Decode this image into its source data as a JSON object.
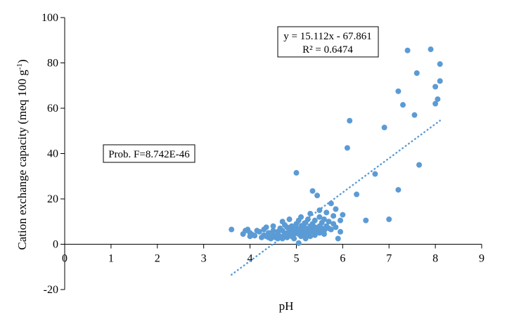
{
  "chart_data": {
    "type": "scatter",
    "title": "",
    "xlabel": "pH",
    "ylabel": "Cation exchange capacity  (meq 100 g",
    "ylabel_sup": "-1",
    "ylabel_close": ")",
    "xlim": [
      0,
      9
    ],
    "ylim": [
      -20,
      100
    ],
    "xticks": [
      0,
      1,
      2,
      3,
      4,
      5,
      6,
      7,
      8,
      9
    ],
    "yticks": [
      -20,
      0,
      20,
      40,
      60,
      80,
      100
    ],
    "grid": false,
    "legend": "none",
    "colors": {
      "points": "#5b9bd5",
      "trendline": "#5b9bd5",
      "axis": "#000000"
    },
    "trendline": {
      "slope": 15.112,
      "intercept": -67.861,
      "x_range": [
        3.6,
        8.1
      ],
      "style": "dotted"
    },
    "annotations": {
      "equation": "y = 15.112x - 67.861",
      "r_squared": "R² = 0.6474",
      "prob_f": "Prob. F=8.742E-46"
    },
    "points": [
      [
        3.6,
        6.5
      ],
      [
        3.85,
        4.5
      ],
      [
        3.9,
        6
      ],
      [
        3.95,
        6.5
      ],
      [
        4.0,
        5
      ],
      [
        4.0,
        3.5
      ],
      [
        4.05,
        4.2
      ],
      [
        4.1,
        3.8
      ],
      [
        4.15,
        6
      ],
      [
        4.2,
        5.5
      ],
      [
        4.25,
        3
      ],
      [
        4.3,
        4
      ],
      [
        4.3,
        6.5
      ],
      [
        4.35,
        3.5
      ],
      [
        4.35,
        7.5
      ],
      [
        4.4,
        5
      ],
      [
        4.4,
        3
      ],
      [
        4.45,
        2.5
      ],
      [
        4.5,
        4
      ],
      [
        4.5,
        6
      ],
      [
        4.5,
        8
      ],
      [
        4.55,
        3
      ],
      [
        4.6,
        5.5
      ],
      [
        4.6,
        2.5
      ],
      [
        4.6,
        4.5
      ],
      [
        4.65,
        7
      ],
      [
        4.65,
        3.5
      ],
      [
        4.7,
        6
      ],
      [
        4.7,
        10
      ],
      [
        4.7,
        2.5
      ],
      [
        4.75,
        4.5
      ],
      [
        4.75,
        8.5
      ],
      [
        4.8,
        5
      ],
      [
        4.8,
        3
      ],
      [
        4.8,
        7.5
      ],
      [
        4.85,
        4
      ],
      [
        4.85,
        6
      ],
      [
        4.85,
        11
      ],
      [
        4.9,
        5.5
      ],
      [
        4.9,
        3.5
      ],
      [
        4.9,
        8
      ],
      [
        4.95,
        6.5
      ],
      [
        4.95,
        4.5
      ],
      [
        4.95,
        2.5
      ],
      [
        5.0,
        5
      ],
      [
        5.0,
        7
      ],
      [
        5.0,
        9
      ],
      [
        5.0,
        31.5
      ],
      [
        5.05,
        4.5
      ],
      [
        5.05,
        6
      ],
      [
        5.05,
        10.5
      ],
      [
        5.05,
        0.5
      ],
      [
        5.1,
        5.5
      ],
      [
        5.1,
        7.5
      ],
      [
        5.1,
        3.5
      ],
      [
        5.1,
        12
      ],
      [
        5.15,
        6
      ],
      [
        5.15,
        8.5
      ],
      [
        5.15,
        4
      ],
      [
        5.2,
        5
      ],
      [
        5.2,
        7
      ],
      [
        5.2,
        9.5
      ],
      [
        5.2,
        2.5
      ],
      [
        5.25,
        6.5
      ],
      [
        5.25,
        4.5
      ],
      [
        5.25,
        11
      ],
      [
        5.3,
        5.5
      ],
      [
        5.3,
        8
      ],
      [
        5.3,
        3.5
      ],
      [
        5.3,
        13.5
      ],
      [
        5.35,
        6
      ],
      [
        5.35,
        9
      ],
      [
        5.35,
        23.5
      ],
      [
        5.4,
        5
      ],
      [
        5.4,
        7.5
      ],
      [
        5.4,
        10.5
      ],
      [
        5.4,
        4
      ],
      [
        5.45,
        6.5
      ],
      [
        5.45,
        21.5
      ],
      [
        5.5,
        5
      ],
      [
        5.5,
        8
      ],
      [
        5.5,
        12
      ],
      [
        5.5,
        15
      ],
      [
        5.55,
        7
      ],
      [
        5.55,
        9.5
      ],
      [
        5.6,
        6
      ],
      [
        5.6,
        11
      ],
      [
        5.6,
        4.5
      ],
      [
        5.65,
        8
      ],
      [
        5.65,
        14
      ],
      [
        5.7,
        7
      ],
      [
        5.7,
        10
      ],
      [
        5.75,
        6.5
      ],
      [
        5.75,
        18
      ],
      [
        5.8,
        9
      ],
      [
        5.8,
        12.5
      ],
      [
        5.85,
        7.5
      ],
      [
        5.85,
        15.5
      ],
      [
        5.9,
        2.5
      ],
      [
        5.95,
        5.5
      ],
      [
        5.95,
        10.5
      ],
      [
        6.0,
        13
      ],
      [
        6.1,
        42.5
      ],
      [
        6.15,
        54.5
      ],
      [
        6.3,
        22
      ],
      [
        6.5,
        10.5
      ],
      [
        6.7,
        31
      ],
      [
        6.9,
        51.5
      ],
      [
        7.0,
        11
      ],
      [
        7.2,
        24
      ],
      [
        7.2,
        67.5
      ],
      [
        7.3,
        61.5
      ],
      [
        7.4,
        85.5
      ],
      [
        7.55,
        57
      ],
      [
        7.6,
        75.5
      ],
      [
        7.65,
        35
      ],
      [
        7.9,
        86
      ],
      [
        8.0,
        69.5
      ],
      [
        8.0,
        62
      ],
      [
        8.05,
        64
      ],
      [
        8.1,
        72
      ],
      [
        8.1,
        79.5
      ]
    ]
  }
}
